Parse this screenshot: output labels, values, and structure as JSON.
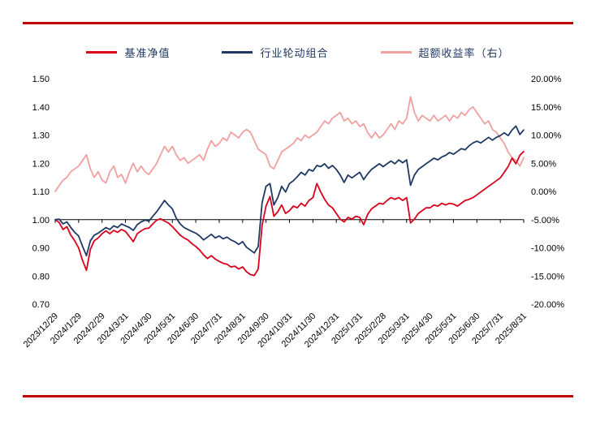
{
  "page": {
    "rule_color": "#c00000",
    "background": "#ffffff"
  },
  "legend": [
    {
      "label": "基准净值",
      "color": "#d9001b"
    },
    {
      "label": "行业轮动组合",
      "color": "#1f3864"
    },
    {
      "label": "超额收益率（右）",
      "color": "#f0a0a0"
    }
  ],
  "chart_data": {
    "type": "line",
    "title": "",
    "legend_position": "top",
    "grid": false,
    "baseline_value": 1.0,
    "x_tick_labels": [
      "2023/12/29",
      "2024/1/29",
      "2024/2/29",
      "2024/3/31",
      "2024/4/30",
      "2024/5/31",
      "2024/6/30",
      "2024/7/31",
      "2024/8/31",
      "2024/9/30",
      "2024/10/31",
      "2024/11/30",
      "2024/12/31",
      "2025/1/31",
      "2025/2/28",
      "2025/3/31",
      "2025/4/30",
      "2025/5/31",
      "2025/6/30",
      "2025/7/31",
      "2025/8/31"
    ],
    "left_axis": {
      "min": 0.7,
      "max": 1.5,
      "tick_labels": [
        "1.50",
        "1.40",
        "1.30",
        "1.20",
        "1.10",
        "1.00",
        "0.90",
        "0.80",
        "0.70"
      ]
    },
    "right_axis": {
      "min": -20,
      "max": 20,
      "tick_labels": [
        "20.00%",
        "15.00%",
        "10.00%",
        "5.00%",
        "0.00%",
        "-5.00%",
        "-10.00%",
        "-15.00%",
        "-20.00%"
      ]
    },
    "series": [
      {
        "name": "基准净值",
        "axis": "left",
        "color": "#d9001b",
        "values": [
          1.0,
          0.99,
          0.965,
          0.975,
          0.945,
          0.925,
          0.9,
          0.855,
          0.82,
          0.895,
          0.925,
          0.935,
          0.95,
          0.96,
          0.95,
          0.962,
          0.955,
          0.965,
          0.958,
          0.94,
          0.922,
          0.95,
          0.96,
          0.968,
          0.97,
          0.985,
          0.998,
          1.003,
          0.995,
          0.988,
          0.975,
          0.96,
          0.945,
          0.935,
          0.928,
          0.915,
          0.905,
          0.892,
          0.875,
          0.862,
          0.872,
          0.86,
          0.852,
          0.845,
          0.842,
          0.832,
          0.835,
          0.825,
          0.832,
          0.815,
          0.805,
          0.802,
          0.825,
          0.98,
          1.048,
          1.082,
          1.012,
          1.028,
          1.052,
          1.022,
          1.032,
          1.048,
          1.042,
          1.058,
          1.048,
          1.068,
          1.078,
          1.128,
          1.098,
          1.072,
          1.052,
          1.042,
          1.022,
          1.002,
          0.992,
          1.008,
          1.002,
          1.012,
          1.008,
          0.982,
          1.018,
          1.038,
          1.048,
          1.058,
          1.055,
          1.068,
          1.078,
          1.072,
          1.078,
          1.068,
          1.078,
          0.988,
          1.002,
          1.022,
          1.032,
          1.042,
          1.042,
          1.052,
          1.048,
          1.058,
          1.052,
          1.058,
          1.055,
          1.048,
          1.058,
          1.068,
          1.072,
          1.078,
          1.088,
          1.098,
          1.108,
          1.118,
          1.128,
          1.138,
          1.148,
          1.168,
          1.188,
          1.218,
          1.198,
          1.228,
          1.242
        ]
      },
      {
        "name": "行业轮动组合",
        "axis": "left",
        "color": "#1f3864",
        "values": [
          1.0,
          1.002,
          0.985,
          0.992,
          0.972,
          0.955,
          0.942,
          0.905,
          0.872,
          0.925,
          0.945,
          0.952,
          0.962,
          0.972,
          0.965,
          0.978,
          0.972,
          0.985,
          0.978,
          0.972,
          0.962,
          0.982,
          0.992,
          0.998,
          0.995,
          1.012,
          1.028,
          1.048,
          1.068,
          1.052,
          1.038,
          1.005,
          0.985,
          0.972,
          0.965,
          0.958,
          0.952,
          0.942,
          0.928,
          0.938,
          0.948,
          0.935,
          0.942,
          0.932,
          0.938,
          0.928,
          0.922,
          0.912,
          0.922,
          0.902,
          0.892,
          0.882,
          0.905,
          1.06,
          1.118,
          1.128,
          1.052,
          1.078,
          1.118,
          1.098,
          1.128,
          1.138,
          1.152,
          1.168,
          1.158,
          1.178,
          1.172,
          1.192,
          1.188,
          1.198,
          1.182,
          1.192,
          1.178,
          1.158,
          1.132,
          1.158,
          1.148,
          1.158,
          1.168,
          1.142,
          1.162,
          1.178,
          1.188,
          1.198,
          1.188,
          1.198,
          1.208,
          1.198,
          1.212,
          1.202,
          1.212,
          1.122,
          1.158,
          1.178,
          1.188,
          1.198,
          1.208,
          1.218,
          1.212,
          1.222,
          1.228,
          1.238,
          1.232,
          1.242,
          1.252,
          1.248,
          1.262,
          1.272,
          1.278,
          1.272,
          1.282,
          1.292,
          1.282,
          1.292,
          1.298,
          1.308,
          1.298,
          1.318,
          1.332,
          1.302,
          1.318
        ]
      },
      {
        "name": "超额收益率（右）",
        "axis": "right",
        "color": "#f0a0a0",
        "values": [
          0.0,
          1.0,
          2.0,
          2.5,
          3.5,
          4.0,
          4.5,
          5.5,
          6.5,
          4.0,
          2.5,
          3.5,
          2.0,
          1.5,
          3.5,
          4.5,
          2.5,
          3.0,
          1.5,
          3.5,
          5.0,
          3.5,
          4.5,
          3.5,
          3.0,
          4.0,
          5.0,
          6.5,
          8.0,
          7.0,
          8.0,
          6.5,
          5.5,
          6.0,
          5.0,
          5.5,
          6.0,
          6.5,
          5.5,
          7.5,
          9.0,
          8.0,
          8.5,
          9.5,
          9.0,
          10.5,
          10.0,
          9.5,
          10.5,
          11.0,
          10.5,
          9.0,
          7.5,
          7.0,
          6.5,
          4.5,
          4.0,
          5.5,
          7.0,
          7.5,
          8.0,
          8.5,
          9.5,
          9.0,
          10.0,
          9.5,
          10.0,
          10.5,
          11.5,
          12.5,
          12.0,
          13.0,
          13.5,
          14.0,
          12.5,
          13.0,
          12.0,
          12.5,
          11.5,
          12.0,
          10.5,
          9.5,
          10.5,
          9.5,
          10.0,
          11.0,
          12.0,
          11.0,
          12.5,
          12.0,
          13.0,
          16.8,
          14.0,
          12.5,
          13.5,
          13.0,
          12.5,
          13.5,
          12.5,
          13.0,
          13.5,
          12.5,
          13.5,
          13.0,
          14.0,
          13.5,
          14.5,
          15.0,
          14.0,
          13.0,
          12.0,
          12.5,
          11.0,
          10.5,
          9.5,
          8.5,
          7.0,
          6.0,
          5.5,
          4.5,
          6.0
        ]
      }
    ]
  }
}
